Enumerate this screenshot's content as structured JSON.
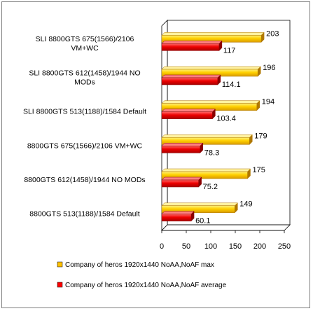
{
  "chart_data": {
    "type": "bar",
    "orientation": "horizontal",
    "categories": [
      "SLI 8800GTS 675(1566)/2106 VM+WC",
      "SLI 8800GTS 612(1458)/1944 NO MODs",
      "SLI 8800GTS 513(1188)/1584 Default",
      "8800GTS 675(1566)/2106 VM+WC",
      "8800GTS 612(1458)/1944 NO MODs",
      "8800GTS 513(1188)/1584 Default"
    ],
    "category_lines": [
      [
        "SLI 8800GTS 675(1566)/2106",
        "VM+WC"
      ],
      [
        "SLI 8800GTS 612(1458)/1944 NO",
        "MODs"
      ],
      [
        "SLI 8800GTS 513(1188)/1584 Default"
      ],
      [
        "8800GTS 675(1566)/2106 VM+WC"
      ],
      [
        "8800GTS 612(1458)/1944 NO MODs"
      ],
      [
        "8800GTS 513(1188)/1584 Default"
      ]
    ],
    "series": [
      {
        "name": "Company of heros 1920x1440 NoAA,NoAF max",
        "color": "#FFC000",
        "values": [
          203,
          196,
          194,
          179,
          175,
          149
        ],
        "labels": [
          "203",
          "196",
          "194",
          "179",
          "175",
          "149"
        ]
      },
      {
        "name": "Company of heros 1920x1440 NoAA,NoAF average",
        "color": "#FF0000",
        "values": [
          117,
          114.1,
          103.4,
          78.3,
          75.2,
          60.1
        ],
        "labels": [
          "117",
          "114.1",
          "103.4",
          "78.3",
          "75.2",
          "60.1"
        ]
      }
    ],
    "xlim": [
      0,
      250
    ],
    "xticks": [
      "0",
      "50",
      "100",
      "150",
      "200",
      "250"
    ],
    "grid": false,
    "style": "3d",
    "legend_position": "bottom"
  }
}
